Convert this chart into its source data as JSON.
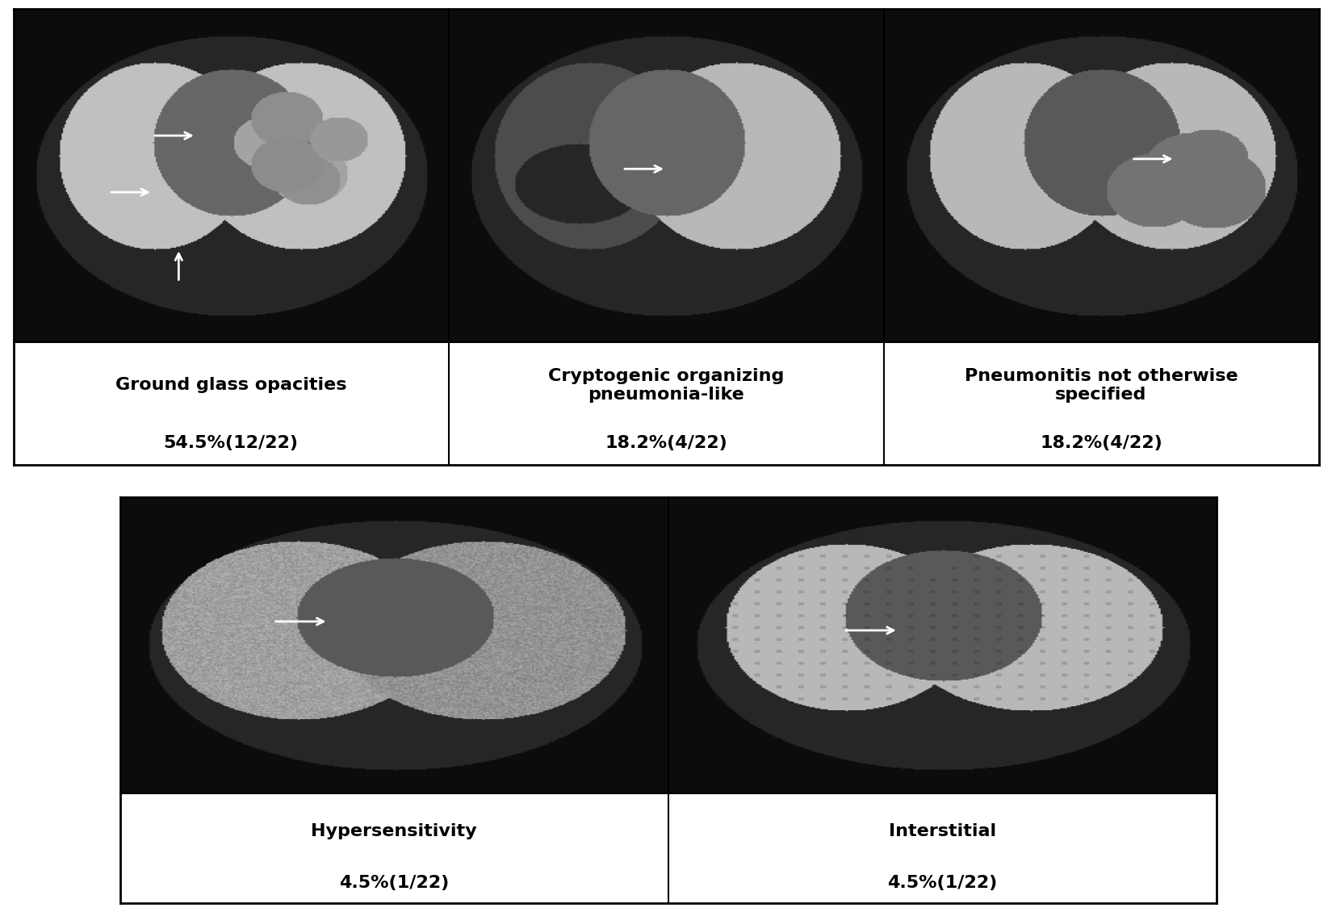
{
  "panels": [
    {
      "row": 0,
      "col": 0,
      "label_line1": "Ground glass opacities",
      "label_line2": "54.5%(12/22)"
    },
    {
      "row": 0,
      "col": 1,
      "label_line1": "Cryptogenic organizing\npneumonia-like",
      "label_line2": "18.2%(4/22)"
    },
    {
      "row": 0,
      "col": 2,
      "label_line1": "Pneumonitis not otherwise\nspecified",
      "label_line2": "18.2%(4/22)"
    },
    {
      "row": 1,
      "col": 0,
      "label_line1": "Hypersensitivity",
      "label_line2": "4.5%(1/22)"
    },
    {
      "row": 1,
      "col": 1,
      "label_line1": "Interstitial",
      "label_line2": "4.5%(1/22)"
    }
  ],
  "background_color": "#ffffff",
  "border_color": "#000000",
  "text_color": "#000000",
  "label_fontsize": 16,
  "percent_fontsize": 16,
  "figure_width": 16.5,
  "figure_height": 11.3
}
